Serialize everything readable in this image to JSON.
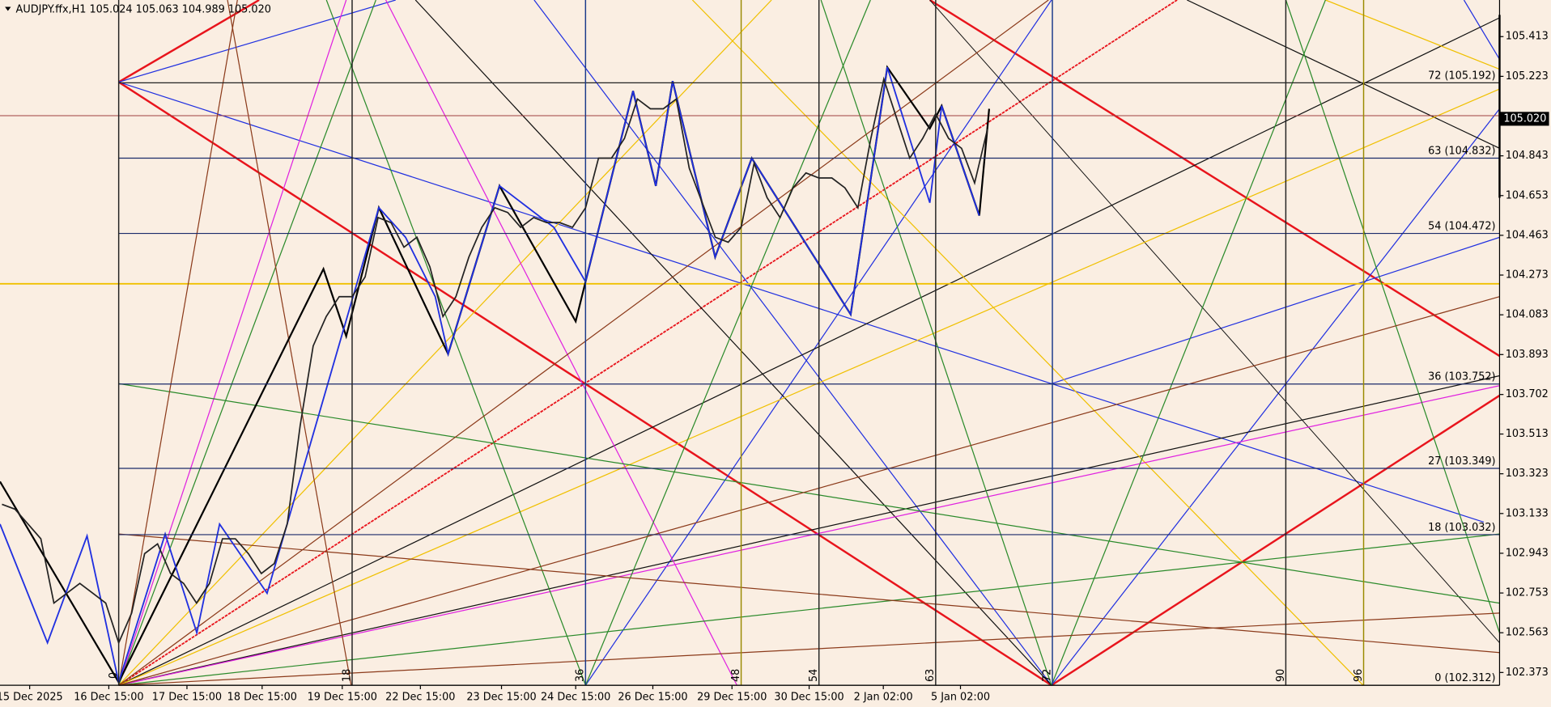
{
  "chart_data": {
    "type": "line",
    "title": "AUDJPY.ffx,H1  105.024 105.063 104.989 105.020",
    "ylim": [
      102.312,
      105.588
    ],
    "yticks": [
      105.413,
      105.223,
      104.843,
      104.653,
      104.463,
      104.273,
      104.083,
      103.893,
      103.702,
      103.513,
      103.323,
      103.133,
      102.943,
      102.753,
      102.563,
      102.373
    ],
    "last_price": {
      "value": 105.02,
      "label": "105.020"
    },
    "time_labels": [
      "15 Dec 2025",
      "16 Dec 15:00",
      "17 Dec 15:00",
      "18 Dec 15:00",
      "19 Dec 15:00",
      "22 Dec 15:00",
      "23 Dec 15:00",
      "24 Dec 15:00",
      "26 Dec 15:00",
      "29 Dec 15:00",
      "30 Dec 15:00",
      "2 Jan 02:00",
      "5 Jan 02:00"
    ],
    "verticals": [
      0,
      18,
      36,
      48,
      54,
      63,
      72,
      90,
      96
    ],
    "levels": [
      {
        "value": 105.192,
        "label": "72 (105.192)"
      },
      {
        "value": 104.832,
        "label": "63 (104.832)"
      },
      {
        "value": 104.472,
        "label": "54 (104.472)"
      },
      {
        "value": 103.752,
        "label": "36 (103.752)"
      },
      {
        "value": 103.349,
        "label": "27 (103.349)"
      },
      {
        "value": 103.032,
        "label": "18 (103.032)"
      },
      {
        "value": 102.312,
        "label": "0 (102.312)"
      }
    ],
    "x": [
      -9,
      -8,
      -7,
      -6,
      -5,
      -4,
      -3,
      -2,
      -1,
      0,
      1,
      2,
      3,
      4,
      5,
      6,
      7,
      8,
      9,
      10,
      11,
      12,
      13,
      14,
      15,
      16,
      17,
      18,
      19,
      20,
      21,
      22,
      23,
      24,
      25,
      26,
      27,
      28,
      29,
      30,
      31,
      32,
      33,
      34,
      35,
      36,
      37,
      38,
      39,
      40,
      41,
      42,
      43,
      44,
      45,
      46,
      47,
      48,
      49,
      50,
      51,
      52,
      53,
      54,
      55,
      56,
      57,
      58,
      59,
      60,
      61,
      62,
      63,
      64,
      65,
      66,
      67
    ],
    "values": [
      103.177,
      103.154,
      103.083,
      103.012,
      102.705,
      102.752,
      102.799,
      102.752,
      102.705,
      102.515,
      102.657,
      102.941,
      102.988,
      102.846,
      102.799,
      102.705,
      102.799,
      103.012,
      103.012,
      102.941,
      102.846,
      102.894,
      103.083,
      103.555,
      103.934,
      104.075,
      104.17,
      104.17,
      104.264,
      104.548,
      104.524,
      104.406,
      104.454,
      104.312,
      104.075,
      104.17,
      104.359,
      104.501,
      104.595,
      104.572,
      104.501,
      104.548,
      104.524,
      104.524,
      104.501,
      104.595,
      104.832,
      104.832,
      104.926,
      105.115,
      105.068,
      105.068,
      105.115,
      104.784,
      104.619,
      104.454,
      104.43,
      104.501,
      104.808,
      104.643,
      104.548,
      104.69,
      104.761,
      104.737,
      104.737,
      104.69,
      104.595,
      104.926,
      105.21,
      105.021,
      104.832,
      104.926,
      105.044,
      104.926,
      104.879,
      104.713,
      104.973
    ],
    "color": "#222222"
  }
}
